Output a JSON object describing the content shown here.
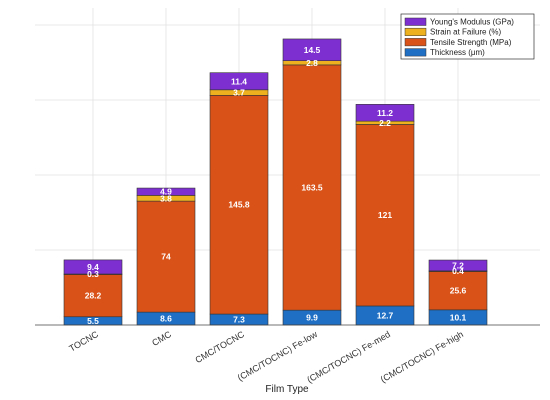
{
  "chart_data": {
    "type": "bar",
    "stacked": true,
    "categories": [
      "TOCNC",
      "CMC",
      "CMC/TOCNC",
      "(CMC/TOCNC) Fe-low",
      "(CMC/TOCNC) Fe-med",
      "(CMC/TOCNC) Fe-high"
    ],
    "xlabel": "Film Type",
    "ylabel": "",
    "title": "",
    "ylim": [
      0,
      210
    ],
    "grid": true,
    "legend_position": "top-right",
    "series": [
      {
        "name": "Thickness  (μm)",
        "color": "#1f6fc5",
        "values": [
          5.5,
          8.6,
          7.3,
          9.9,
          12.7,
          10.1
        ],
        "labels": [
          "5.5",
          "8.6",
          "7.3",
          "9.9",
          "12.7",
          "10.1"
        ]
      },
      {
        "name": "Tensile Strength (MPa)",
        "color": "#d95319",
        "values": [
          28.2,
          74,
          145.8,
          163.5,
          121,
          25.6
        ],
        "labels": [
          "28.2",
          "74",
          "145.8",
          "163.5",
          "121",
          "25.6"
        ]
      },
      {
        "name": "Strain at Failure (%)",
        "color": "#edb120",
        "values": [
          0.3,
          3.8,
          3.7,
          2.8,
          2.2,
          0.4
        ],
        "labels": [
          "0.3",
          "3.8",
          "3.7",
          "2.8",
          "2.2",
          "0.4"
        ]
      },
      {
        "name": "Young's Modulus (GPa)",
        "color": "#7e2fd0",
        "values": [
          9.4,
          4.9,
          11.4,
          14.5,
          11.2,
          7.2
        ],
        "labels": [
          "9.4",
          "4.9",
          "11.4",
          "14.5",
          "11.2",
          "7.2"
        ]
      }
    ]
  }
}
